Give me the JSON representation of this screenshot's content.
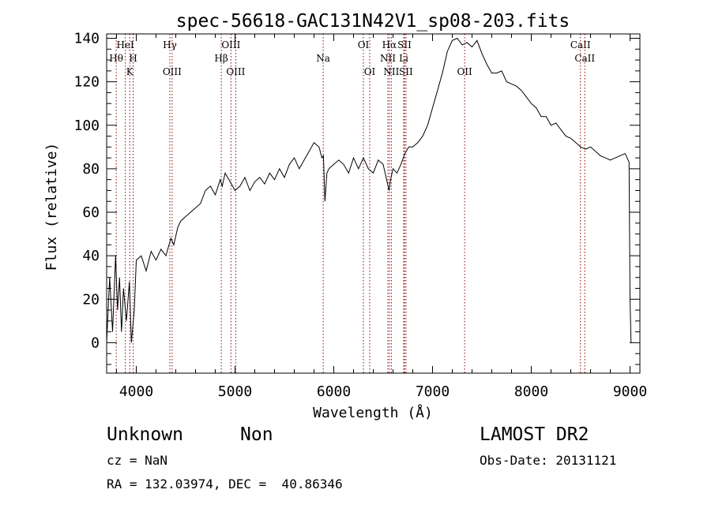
{
  "title": "spec-56618-GAC131N42V1_sp08-203.fits",
  "info": {
    "class": "Unknown",
    "subclass": "Non",
    "survey": "LAMOST DR2",
    "cz": "cz = NaN",
    "obs_date": "Obs-Date: 20131121",
    "coords": "RA = 132.03974, DEC =  40.86346"
  },
  "colors": {
    "spectrum": "#000000",
    "lines": "#8b0000",
    "frame": "#000000"
  },
  "chart_data": {
    "type": "line",
    "title": "spec-56618-GAC131N42V1_sp08-203.fits",
    "xlabel": "Wavelength (Å)",
    "ylabel": "Flux (relative)",
    "xlim": [
      3700,
      9100
    ],
    "ylim": [
      -14,
      142
    ],
    "xticks": [
      4000,
      5000,
      6000,
      7000,
      8000,
      9000
    ],
    "yticks": [
      0,
      20,
      40,
      60,
      80,
      100,
      120,
      140
    ],
    "grid": false,
    "series": [
      {
        "x": [
          3700,
          3730,
          3760,
          3790,
          3810,
          3830,
          3850,
          3870,
          3900,
          3930,
          3950,
          3980,
          4000,
          4050,
          4100,
          4150,
          4200,
          4250,
          4300,
          4350,
          4380,
          4420,
          4450,
          4500,
          4550,
          4600,
          4650,
          4700,
          4750,
          4800,
          4850,
          4870,
          4900,
          4950,
          5000,
          5050,
          5100,
          5150,
          5200,
          5250,
          5300,
          5350,
          5400,
          5450,
          5500,
          5550,
          5600,
          5650,
          5700,
          5750,
          5800,
          5850,
          5880,
          5895,
          5910,
          5930,
          5950,
          6000,
          6050,
          6100,
          6150,
          6200,
          6250,
          6300,
          6350,
          6400,
          6450,
          6500,
          6540,
          6560,
          6575,
          6600,
          6640,
          6680,
          6720,
          6760,
          6800,
          6850,
          6900,
          6950,
          7000,
          7050,
          7100,
          7150,
          7200,
          7250,
          7300,
          7350,
          7400,
          7450,
          7500,
          7550,
          7600,
          7650,
          7700,
          7750,
          7800,
          7850,
          7900,
          7950,
          8000,
          8050,
          8100,
          8150,
          8200,
          8250,
          8300,
          8350,
          8400,
          8450,
          8500,
          8550,
          8600,
          8650,
          8700,
          8750,
          8800,
          8850,
          8900,
          8950,
          8990,
          9000,
          9010
        ],
        "y": [
          0,
          30,
          5,
          40,
          15,
          30,
          5,
          25,
          10,
          28,
          0,
          15,
          38,
          40,
          33,
          42,
          38,
          43,
          40,
          48,
          45,
          53,
          56,
          58,
          60,
          62,
          64,
          70,
          72,
          68,
          75,
          72,
          78,
          74,
          70,
          72,
          76,
          70,
          74,
          76,
          73,
          78,
          75,
          80,
          76,
          82,
          85,
          80,
          84,
          88,
          92,
          90,
          85,
          86,
          65,
          78,
          80,
          82,
          84,
          82,
          78,
          85,
          80,
          85,
          80,
          78,
          84,
          82,
          74,
          70,
          75,
          80,
          78,
          82,
          87,
          90,
          90,
          92,
          95,
          100,
          108,
          116,
          124,
          134,
          139,
          140,
          137,
          138,
          136,
          139,
          133,
          128,
          124,
          124,
          125,
          120,
          119,
          118,
          116,
          113,
          110,
          108,
          104,
          104,
          100,
          101,
          98,
          95,
          94,
          92,
          90,
          89,
          90,
          88,
          86,
          85,
          84,
          85,
          86,
          87,
          83,
          20,
          0
        ]
      }
    ],
    "lines": [
      {
        "name": "Hθ",
        "x": 3797,
        "row": 2
      },
      {
        "name": "HeI",
        "x": 3889,
        "row": 1
      },
      {
        "name": "K",
        "x": 3934,
        "row": 3
      },
      {
        "name": "H",
        "x": 3969,
        "row": 2
      },
      {
        "name": "Hγ",
        "x": 4340,
        "row": 1
      },
      {
        "name": "OIII",
        "x": 4363,
        "row": 3
      },
      {
        "name": "Hβ",
        "x": 4861,
        "row": 2
      },
      {
        "name": "OIII",
        "x": 4959,
        "row": 1
      },
      {
        "name": "OIII",
        "x": 5007,
        "row": 3
      },
      {
        "name": "Na",
        "x": 5893,
        "row": 2
      },
      {
        "name": "OI",
        "x": 6300,
        "row": 1
      },
      {
        "name": "OI",
        "x": 6364,
        "row": 3
      },
      {
        "name": "NII",
        "x": 6548,
        "row": 2
      },
      {
        "name": "Hα",
        "x": 6563,
        "row": 1
      },
      {
        "name": "NII",
        "x": 6583,
        "row": 3
      },
      {
        "name": "SII",
        "x": 6716,
        "row": 1
      },
      {
        "name": "Li",
        "x": 6708,
        "row": 2
      },
      {
        "name": "SII",
        "x": 6731,
        "row": 3
      },
      {
        "name": "OII",
        "x": 7325,
        "row": 3
      },
      {
        "name": "CaII",
        "x": 8498,
        "row": 1
      },
      {
        "name": "CaII",
        "x": 8542,
        "row": 2
      }
    ]
  }
}
